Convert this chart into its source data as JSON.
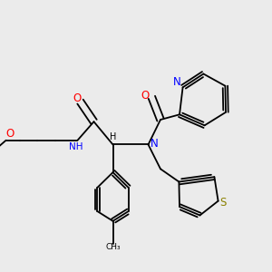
{
  "background_color": "#ebebeb",
  "bond_color": "black",
  "figsize": [
    3.0,
    3.0
  ],
  "dpi": 100,
  "lw": 1.3,
  "xlim": [
    0.0,
    1.0
  ],
  "ylim": [
    0.05,
    1.0
  ]
}
